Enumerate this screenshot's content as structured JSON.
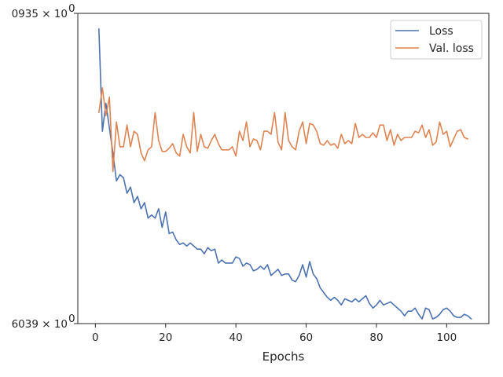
{
  "chart_data": {
    "type": "line",
    "title": "",
    "xlabel": "Epochs",
    "ylabel": "",
    "xlim": [
      -5,
      112
    ],
    "ylim": [
      0,
      100
    ],
    "x_ticks": [
      {
        "value": 0,
        "label": "0"
      },
      {
        "value": 20,
        "label": "20"
      },
      {
        "value": 40,
        "label": "40"
      },
      {
        "value": 60,
        "label": "60"
      },
      {
        "value": 80,
        "label": "80"
      },
      {
        "value": 100,
        "label": "100"
      }
    ],
    "y_ticks": [
      {
        "value": 100,
        "label": "0935 × 10",
        "exp": "0"
      },
      {
        "value": 0,
        "label": "6039 × 10",
        "exp": "0"
      }
    ],
    "grid": false,
    "legend_position": "top-right",
    "colors": {
      "loss": "#4c72b0",
      "val_loss": "#dd8452",
      "axis": "#262626"
    },
    "x_start": 1,
    "series": [
      {
        "name": "Loss",
        "color": "#4c72b0",
        "values": [
          95,
          62,
          71,
          63,
          55,
          46,
          48,
          47,
          42,
          44,
          39,
          41,
          37,
          39,
          34,
          35,
          34,
          37,
          31,
          36,
          29,
          29.5,
          27,
          25.5,
          26,
          25,
          26,
          25,
          24,
          24,
          22.5,
          24.5,
          23.5,
          24,
          19.5,
          20.5,
          19.5,
          19.5,
          19.5,
          21.5,
          21,
          18.5,
          19.5,
          19,
          17,
          17.5,
          18.5,
          17.5,
          19,
          15.5,
          16.5,
          17.5,
          15.5,
          16,
          16,
          14,
          13.5,
          15.5,
          19,
          15,
          20,
          16,
          14.5,
          11.5,
          10,
          8.5,
          7.5,
          8.5,
          7.5,
          6,
          8,
          7.5,
          7,
          8,
          7,
          8,
          9,
          6.5,
          5,
          6,
          7.5,
          6,
          6.5,
          7,
          6,
          5,
          4,
          2.5,
          4,
          4,
          5,
          3,
          1.5,
          5,
          4.5,
          1.5,
          2,
          3,
          4.5,
          5,
          4,
          2.5,
          2,
          2,
          3,
          2.5,
          1.5
        ]
      },
      {
        "name": "Val. loss",
        "color": "#dd8452",
        "values": [
          68,
          76,
          67,
          73,
          49,
          65,
          57,
          57,
          64,
          57,
          62,
          61,
          55,
          52.5,
          56,
          57,
          68,
          59,
          55.5,
          55.5,
          56.5,
          58,
          55,
          54,
          61,
          57,
          55,
          68,
          55.5,
          61,
          57,
          56.5,
          59,
          61,
          58,
          56,
          56,
          56,
          57,
          54,
          62,
          59,
          65,
          57,
          59.5,
          59,
          56,
          62,
          62,
          61,
          68,
          58.5,
          56,
          68,
          59,
          57,
          56,
          62,
          65,
          58,
          64.5,
          64,
          62,
          58,
          57.5,
          59,
          57.5,
          58,
          56.5,
          61,
          58,
          59,
          58,
          64.5,
          60,
          61,
          60,
          60,
          61.5,
          60,
          64,
          64,
          59,
          62.5,
          57.5,
          61,
          59,
          60,
          60,
          60,
          62,
          61.5,
          64,
          60,
          62.5,
          57.5,
          58.5,
          65,
          61,
          62,
          57,
          59.5,
          62,
          62.5,
          60,
          59.5
        ]
      }
    ]
  }
}
